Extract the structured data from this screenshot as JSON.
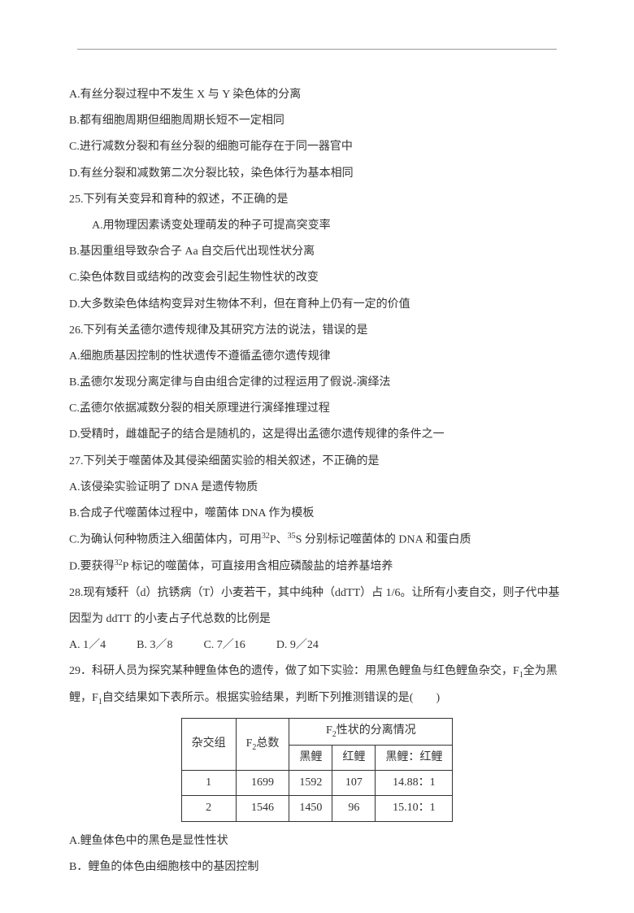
{
  "q24": {
    "a": "A.有丝分裂过程中不发生 X 与 Y 染色体的分离",
    "b": "B.都有细胞周期但细胞周期长短不一定相同",
    "c": "C.进行减数分裂和有丝分裂的细胞可能存在于同一器官中",
    "d": "D.有丝分裂和减数第二次分裂比较，染色体行为基本相同"
  },
  "q25": {
    "stem": "25.下列有关变异和育种的叙述，不正确的是",
    "a": "A.用物理因素诱变处理萌发的种子可提高突变率",
    "b": "B.基因重组导致杂合子 Aa 自交后代出现性状分离",
    "c": "C.染色体数目或结构的改变会引起生物性状的改变",
    "d": "D.大多数染色体结构变异对生物体不利，但在育种上仍有一定的价值"
  },
  "q26": {
    "stem": "26.下列有关孟德尔遗传规律及其研究方法的说法，错误的是",
    "a": "A.细胞质基因控制的性状遗传不遵循孟德尔遗传规律",
    "b": "B.孟德尔发现分离定律与自由组合定律的过程运用了假说-演绎法",
    "c": "C.孟德尔依据减数分裂的相关原理进行演绎推理过程",
    "d": "D.受精时，雌雄配子的结合是随机的，这是得出孟德尔遗传规律的条件之一"
  },
  "q27": {
    "stem": "27.下列关于噬菌体及其侵染细菌实验的相关叙述，不正确的是",
    "a": "A.该侵染实验证明了 DNA 是遗传物质",
    "b": "B.合成子代噬菌体过程中，噬菌体 DNA 作为模板",
    "c_pre": "C.为确认何种物质注入细菌体内，可用",
    "c_p": "P、",
    "c_s": "S 分别标记噬菌体的 DNA 和蛋白质",
    "d_pre": "D.要获得",
    "d_post": "P 标记的噬菌体，可直接用含相应磷酸盐的培养基培养"
  },
  "q28": {
    "stem": "28.现有矮秆（d）抗锈病（T）小麦若干，其中纯种（ddTT）占 1/6。让所有小麦自交，则子代中基因型为 ddTT 的小麦占子代总数的比例是",
    "a": "A. 1／4",
    "b": "B. 3／8",
    "c": "C. 7／16",
    "d": "D. 9／24"
  },
  "q29": {
    "stem_p1": "29．科研人员为探究某种鲤鱼体色的遗传，做了如下实验：用黑色鲤鱼与红色鲤鱼杂交，F",
    "stem_p2": "全为黑鲤，F",
    "stem_p3": "自交结果如下表所示。根据实验结果，判断下列推测错误的是(　　)",
    "a": "A.鲤鱼体色中的黑色是显性性状",
    "b": "B．鲤鱼的体色由细胞核中的基因控制"
  },
  "table": {
    "h1": "杂交组",
    "h2_pre": "F",
    "h2_post": "总数",
    "h3_pre": "F",
    "h3_post": "性状的分离情况",
    "s1": "黑鲤",
    "s2": "红鲤",
    "s3": "黑鲤：红鲤",
    "r1": {
      "c1": "1",
      "c2": "1699",
      "c3": "1592",
      "c4": "107",
      "c5": "14.88：1"
    },
    "r2": {
      "c1": "2",
      "c2": "1546",
      "c3": "1450",
      "c4": "96",
      "c5": "15.10：1"
    }
  }
}
